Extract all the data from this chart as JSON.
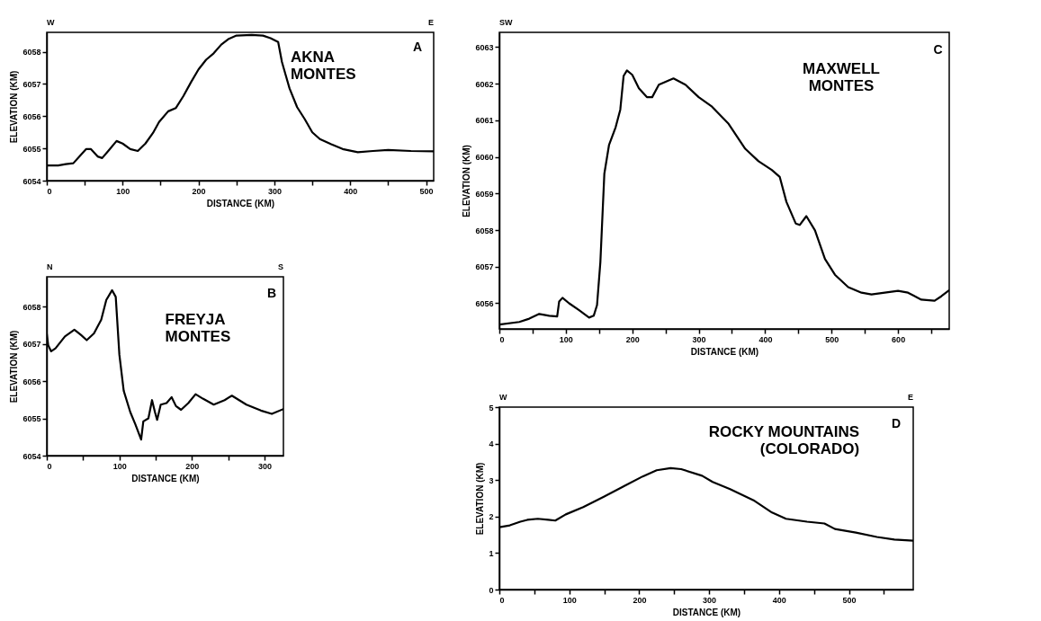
{
  "chart_data": [
    {
      "type": "line",
      "xlabel": "DISTANCE (KM)",
      "ylabel": "ELEVATION (KM)",
      "annotations": [
        "W",
        "E",
        "A",
        "AKNA\nMONTES"
      ],
      "xlim": [
        0,
        510
      ],
      "ylim": [
        6054,
        6058.6
      ],
      "xticks": [
        0,
        {
          "value": 50,
          "label": null
        },
        100,
        {
          "value": 150,
          "label": null
        },
        200,
        {
          "value": 250,
          "label": null
        },
        300,
        {
          "value": 350,
          "label": null
        },
        400,
        {
          "value": 450,
          "label": null
        },
        500
      ],
      "yticks": [
        6054,
        6055,
        6056,
        6057,
        6058
      ],
      "x": [
        0,
        15,
        25,
        35,
        45,
        52,
        58,
        67,
        73,
        82,
        92,
        100,
        110,
        120,
        130,
        140,
        148,
        160,
        170,
        180,
        190,
        200,
        210,
        220,
        230,
        240,
        250,
        270,
        285,
        295,
        305,
        310,
        315,
        320,
        330,
        340,
        350,
        360,
        375,
        390,
        410,
        430,
        450,
        480,
        510
      ],
      "series": [
        {
          "color": "#000000",
          "values": [
            6054.47,
            6054.47,
            6054.51,
            6054.54,
            6054.8,
            6054.98,
            6054.98,
            6054.75,
            6054.7,
            6054.95,
            6055.23,
            6055.15,
            6054.98,
            6054.92,
            6055.15,
            6055.48,
            6055.82,
            6056.15,
            6056.25,
            6056.62,
            6057.05,
            6057.45,
            6057.75,
            6057.95,
            6058.22,
            6058.4,
            6058.5,
            6058.52,
            6058.5,
            6058.42,
            6058.3,
            6057.68,
            6057.27,
            6056.86,
            6056.28,
            6055.91,
            6055.5,
            6055.29,
            6055.13,
            6054.98,
            6054.88,
            6054.92,
            6054.95,
            6054.92,
            6054.91
          ]
        }
      ]
    },
    {
      "type": "line",
      "xlabel": "DISTANCE (KM)",
      "ylabel": "ELEVATION (KM)",
      "annotations": [
        "SW",
        "C",
        "MAXWELL\nMONTES"
      ],
      "xlim": [
        0,
        677
      ],
      "ylim": [
        6055.3,
        6063.4
      ],
      "xticks": [
        0,
        {
          "value": 50,
          "label": null
        },
        100,
        {
          "value": 150,
          "label": null
        },
        200,
        {
          "value": 250,
          "label": null
        },
        300,
        {
          "value": 350,
          "label": null
        },
        400,
        {
          "value": 450,
          "label": null
        },
        500,
        {
          "value": 550,
          "label": null
        },
        600,
        {
          "value": 650,
          "label": null
        }
      ],
      "yticks": [
        6056,
        6057,
        6058,
        6059,
        6060,
        6061,
        6062,
        6063
      ],
      "x": [
        0,
        30,
        45,
        60,
        75,
        87,
        90,
        95,
        105,
        120,
        135,
        142,
        147,
        152,
        158,
        165,
        175,
        182,
        187,
        192,
        200,
        210,
        222,
        230,
        240,
        262,
        280,
        300,
        320,
        345,
        370,
        390,
        410,
        422,
        432,
        446,
        452,
        462,
        475,
        490,
        505,
        525,
        545,
        560,
        580,
        600,
        615,
        635,
        655,
        665,
        677
      ],
      "series": [
        {
          "color": "#000000",
          "values": [
            6055.42,
            6055.49,
            6055.58,
            6055.71,
            6055.66,
            6055.64,
            6056.05,
            6056.15,
            6056.0,
            6055.81,
            6055.61,
            6055.66,
            6055.95,
            6057.12,
            6059.54,
            6060.32,
            6060.81,
            6061.29,
            6062.21,
            6062.36,
            6062.24,
            6061.87,
            6061.63,
            6061.63,
            6061.97,
            6062.14,
            6061.97,
            6061.63,
            6061.37,
            6060.9,
            6060.22,
            6059.88,
            6059.64,
            6059.45,
            6058.77,
            6058.18,
            6058.14,
            6058.38,
            6057.99,
            6057.21,
            6056.78,
            6056.44,
            6056.29,
            6056.24,
            6056.29,
            6056.34,
            6056.29,
            6056.1,
            6056.07,
            6056.19,
            6056.36
          ]
        }
      ]
    },
    {
      "type": "line",
      "xlabel": "DISTANCE (KM)",
      "ylabel": "ELEVATION (KM)",
      "annotations": [
        "N",
        "S",
        "B",
        "FREYJA\nMONTES"
      ],
      "xlim": [
        0,
        326
      ],
      "ylim": [
        6054,
        6058.8
      ],
      "xticks": [
        0,
        {
          "value": 50,
          "label": null
        },
        100,
        {
          "value": 150,
          "label": null
        },
        200,
        {
          "value": 250,
          "label": null
        },
        300
      ],
      "yticks": [
        6054,
        6055,
        6056,
        6057,
        6058
      ],
      "x": [
        0,
        2,
        6,
        12,
        25,
        38,
        47,
        55,
        65,
        75,
        82,
        90,
        95,
        100,
        106,
        115,
        122,
        130,
        133,
        140,
        145,
        149,
        152,
        157,
        165,
        172,
        178,
        185,
        195,
        205,
        215,
        230,
        245,
        255,
        275,
        295,
        310,
        326
      ],
      "series": [
        {
          "color": "#000000",
          "values": [
            6057.27,
            6056.96,
            6056.8,
            6056.88,
            6057.2,
            6057.38,
            6057.24,
            6057.1,
            6057.28,
            6057.65,
            6058.18,
            6058.44,
            6058.26,
            6056.71,
            6055.74,
            6055.17,
            6054.84,
            6054.43,
            6054.92,
            6055.0,
            6055.49,
            6055.17,
            6054.96,
            6055.37,
            6055.41,
            6055.57,
            6055.33,
            6055.23,
            6055.41,
            6055.65,
            6055.53,
            6055.37,
            6055.49,
            6055.61,
            6055.37,
            6055.21,
            6055.12,
            6055.25
          ]
        }
      ]
    },
    {
      "type": "line",
      "xlabel": "DISTANCE (KM)",
      "ylabel": "ELEVATION (KM)",
      "annotations": [
        "W",
        "E",
        "D",
        "ROCKY  MOUNTAINS\n(COLORADO)"
      ],
      "xlim": [
        0,
        592
      ],
      "ylim": [
        0,
        5
      ],
      "xticks": [
        0,
        {
          "value": 50,
          "label": null
        },
        100,
        {
          "value": 150,
          "label": null
        },
        200,
        {
          "value": 250,
          "label": null
        },
        300,
        {
          "value": 350,
          "label": null
        },
        400,
        {
          "value": 450,
          "label": null
        },
        500,
        {
          "value": 550,
          "label": null
        }
      ],
      "yticks": [
        0,
        1,
        2,
        3,
        4,
        5
      ],
      "x": [
        0,
        15,
        30,
        40,
        55,
        70,
        80,
        95,
        120,
        150,
        180,
        205,
        225,
        245,
        260,
        290,
        305,
        330,
        365,
        390,
        410,
        440,
        465,
        480,
        510,
        540,
        565,
        592
      ],
      "series": [
        {
          "color": "#000000",
          "values": [
            1.71,
            1.76,
            1.86,
            1.91,
            1.94,
            1.91,
            1.89,
            2.06,
            2.26,
            2.55,
            2.85,
            3.1,
            3.27,
            3.33,
            3.3,
            3.12,
            2.95,
            2.75,
            2.43,
            2.11,
            1.94,
            1.86,
            1.81,
            1.66,
            1.56,
            1.44,
            1.37,
            1.34
          ]
        }
      ]
    }
  ]
}
